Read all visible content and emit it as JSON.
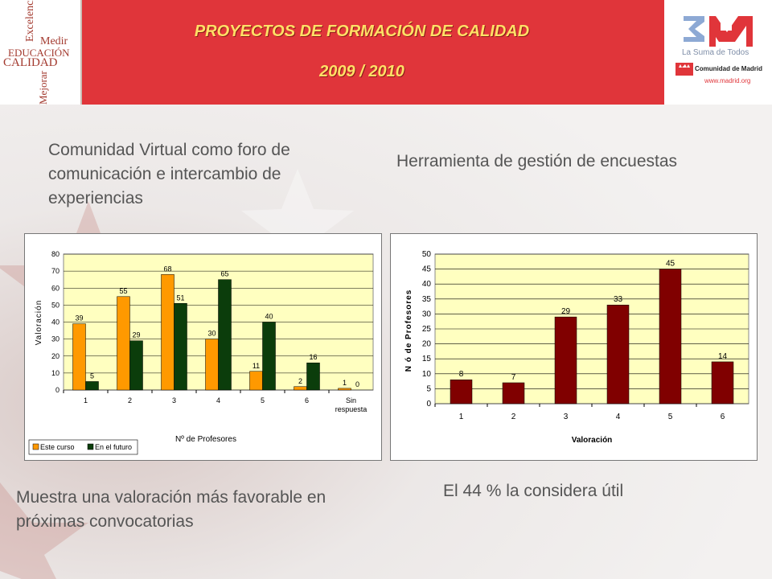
{
  "header": {
    "title": "PROYECTOS DE FORMACIÓN DE CALIDAD",
    "years": "2009 / 2010",
    "left_logo": {
      "words": [
        "Excelencia",
        "Medir",
        "EDUCACIÓN",
        "CALIDAD",
        "Mejorar"
      ]
    },
    "right_logo": {
      "tagline": "La Suma de Todos",
      "org": "Comunidad de Madrid",
      "url": "www.madrid.org"
    }
  },
  "captions": {
    "top_left": "Comunidad Virtual como foro de comunicación e intercambio de experiencias",
    "top_right": "Herramienta de gestión de encuestas",
    "bottom_left": "Muestra una valoración más favorable en próximas convocatorias",
    "bottom_right": "El 44 % la considera útil"
  },
  "chart_data": [
    {
      "type": "bar",
      "categories": [
        "1",
        "2",
        "3",
        "4",
        "5",
        "6",
        "Sin respuesta"
      ],
      "series": [
        {
          "name": "Este curso",
          "values": [
            39,
            55,
            68,
            30,
            11,
            2,
            1
          ],
          "color": "#ff9900"
        },
        {
          "name": "En el futuro",
          "values": [
            5,
            29,
            51,
            65,
            40,
            16,
            0
          ],
          "color": "#0b3d0b"
        }
      ],
      "xlabel": "Nº de Profesores",
      "ylabel": "Valoración",
      "ylim": [
        0,
        80
      ],
      "yticks": [
        0,
        10,
        20,
        30,
        40,
        50,
        60,
        70,
        80
      ],
      "grid": true,
      "plot_bg": "#ffffc0",
      "legend": "bottom-left"
    },
    {
      "type": "bar",
      "categories": [
        "1",
        "2",
        "3",
        "4",
        "5",
        "6"
      ],
      "series": [
        {
          "values": [
            8,
            7,
            29,
            33,
            45,
            14
          ],
          "color": "#800000"
        }
      ],
      "xlabel": "Valoración",
      "ylabel": "N ó de Profesores",
      "ylim": [
        0,
        50
      ],
      "yticks": [
        0,
        5,
        10,
        15,
        20,
        25,
        30,
        35,
        40,
        45,
        50
      ],
      "grid": true,
      "plot_bg": "#ffffc0"
    }
  ]
}
